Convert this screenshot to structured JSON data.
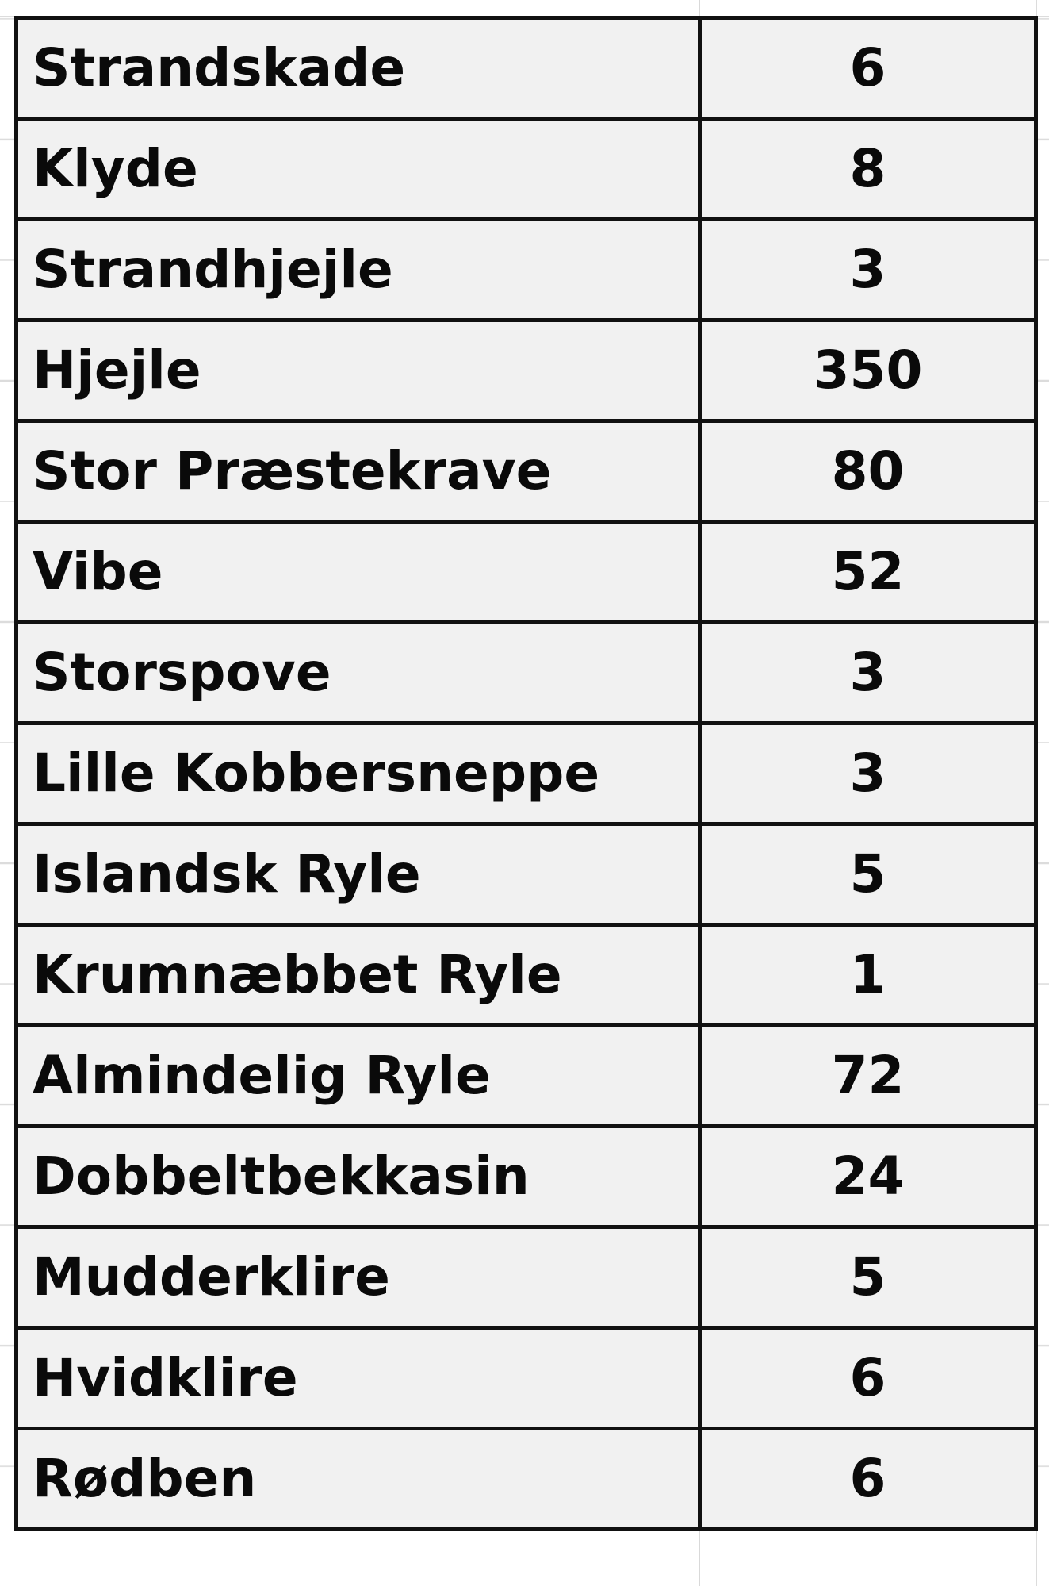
{
  "table": {
    "rows": [
      {
        "name": "Strandskade",
        "count": "6"
      },
      {
        "name": "Klyde",
        "count": "8"
      },
      {
        "name": "Strandhjejle",
        "count": "3"
      },
      {
        "name": "Hjejle",
        "count": "350"
      },
      {
        "name": "Stor Præstekrave",
        "count": "80"
      },
      {
        "name": "Vibe",
        "count": "52"
      },
      {
        "name": "Storspove",
        "count": "3"
      },
      {
        "name": "Lille Kobbersneppe",
        "count": "3"
      },
      {
        "name": "Islandsk Ryle",
        "count": "5"
      },
      {
        "name": "Krumnæbbet Ryle",
        "count": "1"
      },
      {
        "name": "Almindelig Ryle",
        "count": "72"
      },
      {
        "name": "Dobbeltbekkasin",
        "count": "24"
      },
      {
        "name": "Mudderklire",
        "count": "5"
      },
      {
        "name": "Hvidklire",
        "count": "6"
      },
      {
        "name": "Rødben",
        "count": "6"
      }
    ]
  }
}
